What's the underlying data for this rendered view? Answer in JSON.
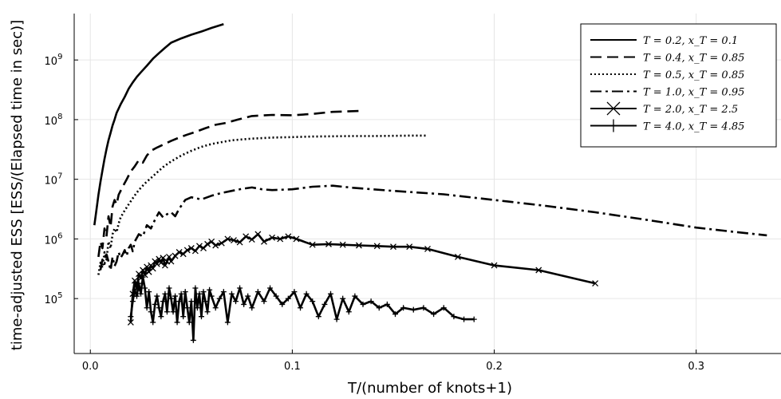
{
  "chart_data": {
    "type": "line",
    "xlabel": "T/(number of knots+1)",
    "ylabel": "time-adjusted ESS [ESS/(Elapsed time in sec)]",
    "xlim": [
      -0.008,
      0.342
    ],
    "ylim": [
      12000,
      6000000000
    ],
    "yscale": "log",
    "grid": true,
    "legend_position": "top-right",
    "x_ticks": [
      0.0,
      0.1,
      0.2,
      0.3
    ],
    "x_tick_labels": [
      "0.0",
      "0.1",
      "0.2",
      "0.3"
    ],
    "y_ticks": [
      100000,
      1000000,
      10000000,
      100000000,
      1000000000
    ],
    "y_tick_labels": [
      {
        "base": "10",
        "exp": "5"
      },
      {
        "base": "10",
        "exp": "6"
      },
      {
        "base": "10",
        "exp": "7"
      },
      {
        "base": "10",
        "exp": "8"
      },
      {
        "base": "10",
        "exp": "9"
      }
    ],
    "series": [
      {
        "name": "T = 0.2, x_T = 0.1",
        "dash": "",
        "marker": "none",
        "x": [
          0.002,
          0.003,
          0.004,
          0.005,
          0.006,
          0.007,
          0.008,
          0.009,
          0.01,
          0.011,
          0.012,
          0.013,
          0.015,
          0.017,
          0.019,
          0.021,
          0.023,
          0.025,
          0.028,
          0.031,
          0.034,
          0.037,
          0.04,
          0.045,
          0.05,
          0.055,
          0.06,
          0.066
        ],
        "y": [
          1700000,
          3000000,
          5500000,
          9000000,
          14000000,
          22000000,
          32000000,
          45000000,
          60000000,
          80000000,
          100000000,
          130000000,
          180000000,
          240000000,
          330000000,
          420000000,
          520000000,
          620000000,
          800000000,
          1050000000,
          1300000000,
          1600000000,
          1950000000,
          2300000000,
          2650000000,
          3000000000,
          3450000000,
          4000000000
        ]
      },
      {
        "name": "T = 0.4, x_T = 0.85",
        "dash": "14,7",
        "marker": "none",
        "x": [
          0.004,
          0.005,
          0.006,
          0.007,
          0.008,
          0.009,
          0.01,
          0.011,
          0.012,
          0.013,
          0.014,
          0.016,
          0.018,
          0.02,
          0.022,
          0.024,
          0.026,
          0.028,
          0.03,
          0.033,
          0.036,
          0.04,
          0.044,
          0.048,
          0.052,
          0.057,
          0.062,
          0.067,
          0.073,
          0.08,
          0.09,
          0.1,
          0.11,
          0.12,
          0.133
        ],
        "y": [
          500000,
          900000,
          700000,
          1500000,
          1100000,
          2400000,
          1600000,
          3500000,
          4500000,
          3800000,
          5500000,
          7500000,
          10000000,
          13500000,
          16500000,
          21000000,
          19000000,
          25000000,
          30000000,
          34000000,
          38000000,
          44000000,
          50000000,
          56000000,
          62000000,
          72000000,
          82000000,
          88000000,
          100000000,
          115000000,
          120000000,
          118000000,
          125000000,
          135000000,
          140000000
        ]
      },
      {
        "name": "T = 0.5, x_T = 0.85",
        "dash": "2,3",
        "marker": "none",
        "x": [
          0.004,
          0.005,
          0.006,
          0.007,
          0.008,
          0.009,
          0.01,
          0.011,
          0.012,
          0.013,
          0.014,
          0.015,
          0.017,
          0.019,
          0.021,
          0.023,
          0.025,
          0.027,
          0.03,
          0.033,
          0.036,
          0.04,
          0.045,
          0.05,
          0.055,
          0.06,
          0.065,
          0.07,
          0.08,
          0.09,
          0.1,
          0.11,
          0.12,
          0.13,
          0.14,
          0.15,
          0.16,
          0.167
        ],
        "y": [
          250000,
          400000,
          330000,
          600000,
          450000,
          900000,
          700000,
          1200000,
          1500000,
          1300000,
          1800000,
          2300000,
          3000000,
          3800000,
          4800000,
          6000000,
          7200000,
          8500000,
          10500000,
          13000000,
          16000000,
          20000000,
          25000000,
          30000000,
          35000000,
          39000000,
          42000000,
          45000000,
          48000000,
          50000000,
          51000000,
          52000000,
          52500000,
          53000000,
          53000000,
          53500000,
          54000000,
          54000000
        ]
      },
      {
        "name": "T = 1.0, x_T = 0.95",
        "dash": "14,5,3,5",
        "marker": "none",
        "x": [
          0.005,
          0.006,
          0.007,
          0.008,
          0.009,
          0.01,
          0.011,
          0.012,
          0.013,
          0.014,
          0.015,
          0.016,
          0.017,
          0.018,
          0.019,
          0.02,
          0.021,
          0.022,
          0.024,
          0.026,
          0.028,
          0.03,
          0.032,
          0.034,
          0.036,
          0.038,
          0.04,
          0.042,
          0.044,
          0.047,
          0.05,
          0.055,
          0.06,
          0.065,
          0.07,
          0.075,
          0.08,
          0.085,
          0.09,
          0.1,
          0.11,
          0.12,
          0.13,
          0.15,
          0.175,
          0.2,
          0.225,
          0.25,
          0.275,
          0.3,
          0.32,
          0.335
        ],
        "y": [
          300000,
          450000,
          380000,
          550000,
          420000,
          300000,
          500000,
          350000,
          420000,
          600000,
          480000,
          550000,
          650000,
          520000,
          700000,
          800000,
          620000,
          900000,
          1200000,
          1100000,
          1700000,
          1500000,
          2100000,
          2800000,
          2300000,
          2600000,
          2800000,
          2400000,
          3200000,
          4500000,
          5000000,
          4600000,
          5300000,
          5900000,
          6400000,
          6900000,
          7300000,
          6800000,
          6600000,
          6800000,
          7500000,
          7800000,
          7200000,
          6400000,
          5600000,
          4500000,
          3600000,
          2800000,
          2100000,
          1550000,
          1300000,
          1150000
        ]
      },
      {
        "name": "T = 2.0, x_T = 2.5",
        "dash": "",
        "marker": "x",
        "x": [
          0.02,
          0.021,
          0.022,
          0.023,
          0.024,
          0.025,
          0.026,
          0.027,
          0.028,
          0.029,
          0.03,
          0.031,
          0.032,
          0.033,
          0.034,
          0.035,
          0.036,
          0.037,
          0.038,
          0.039,
          0.04,
          0.042,
          0.044,
          0.046,
          0.048,
          0.05,
          0.052,
          0.054,
          0.056,
          0.058,
          0.06,
          0.062,
          0.065,
          0.068,
          0.071,
          0.074,
          0.077,
          0.08,
          0.083,
          0.086,
          0.09,
          0.094,
          0.098,
          0.102,
          0.11,
          0.118,
          0.125,
          0.133,
          0.142,
          0.15,
          0.158,
          0.167,
          0.182,
          0.2,
          0.222,
          0.25
        ],
        "y": [
          40000,
          120000,
          200000,
          150000,
          260000,
          220000,
          300000,
          250000,
          340000,
          280000,
          360000,
          320000,
          420000,
          380000,
          460000,
          400000,
          480000,
          360000,
          420000,
          500000,
          420000,
          520000,
          600000,
          560000,
          650000,
          700000,
          630000,
          760000,
          700000,
          820000,
          900000,
          780000,
          850000,
          1000000,
          950000,
          880000,
          1100000,
          980000,
          1200000,
          900000,
          1050000,
          1000000,
          1100000,
          1000000,
          800000,
          820000,
          800000,
          780000,
          760000,
          740000,
          740000,
          680000,
          500000,
          360000,
          300000,
          180000
        ]
      },
      {
        "name": "T = 4.0, x_T = 4.85",
        "dash": "",
        "marker": "+",
        "x": [
          0.02,
          0.021,
          0.022,
          0.023,
          0.024,
          0.025,
          0.026,
          0.027,
          0.028,
          0.029,
          0.03,
          0.031,
          0.032,
          0.033,
          0.034,
          0.035,
          0.036,
          0.037,
          0.038,
          0.039,
          0.04,
          0.041,
          0.042,
          0.043,
          0.044,
          0.045,
          0.046,
          0.047,
          0.048,
          0.049,
          0.05,
          0.051,
          0.052,
          0.053,
          0.054,
          0.055,
          0.056,
          0.057,
          0.058,
          0.059,
          0.06,
          0.062,
          0.064,
          0.066,
          0.068,
          0.07,
          0.072,
          0.074,
          0.076,
          0.078,
          0.08,
          0.083,
          0.086,
          0.089,
          0.092,
          0.095,
          0.098,
          0.101,
          0.104,
          0.107,
          0.11,
          0.113,
          0.116,
          0.119,
          0.122,
          0.125,
          0.128,
          0.131,
          0.135,
          0.139,
          0.143,
          0.147,
          0.151,
          0.155,
          0.16,
          0.165,
          0.17,
          0.175,
          0.18,
          0.185,
          0.19
        ],
        "y": [
          50000,
          90000,
          140000,
          110000,
          180000,
          120000,
          230000,
          150000,
          70000,
          130000,
          60000,
          40000,
          80000,
          110000,
          70000,
          50000,
          90000,
          120000,
          60000,
          150000,
          100000,
          60000,
          110000,
          40000,
          90000,
          120000,
          50000,
          130000,
          70000,
          40000,
          90000,
          20000,
          150000,
          70000,
          120000,
          50000,
          130000,
          90000,
          60000,
          140000,
          110000,
          70000,
          100000,
          130000,
          40000,
          120000,
          90000,
          150000,
          80000,
          110000,
          70000,
          130000,
          90000,
          150000,
          110000,
          80000,
          100000,
          130000,
          70000,
          120000,
          90000,
          50000,
          80000,
          120000,
          45000,
          100000,
          60000,
          110000,
          80000,
          90000,
          70000,
          80000,
          55000,
          70000,
          65000,
          70000,
          55000,
          70000,
          50000,
          45000,
          45000
        ]
      }
    ]
  }
}
